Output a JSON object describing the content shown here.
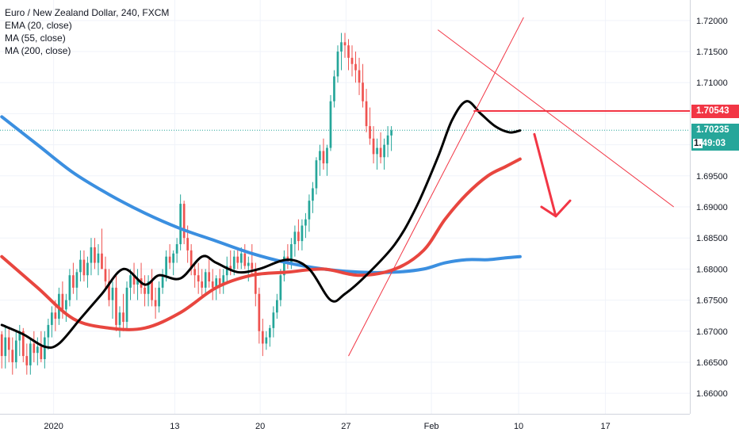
{
  "legend": {
    "title": "Euro / New Zealand Dollar, 240, FXCM",
    "ema": "EMA (20, close)",
    "ma55": "MA (55, close)",
    "ma200": "MA (200, close)"
  },
  "price_tags": {
    "resistance": "1.70543",
    "current": "1.70235",
    "countdown": "49:03",
    "countdown_prefix": "1."
  },
  "colors": {
    "up": "#26a69a",
    "down": "#ef5350",
    "ema20": "#000000",
    "ma55": "#e8463f",
    "ma200": "#3b8fe0",
    "drawing": "#f23645",
    "grid": "#f0f3fa",
    "current_tag": "#26a69a",
    "resistance_tag": "#f23645"
  },
  "chart_data": {
    "type": "candlestick",
    "title": "Euro / New Zealand Dollar, 240, FXCM",
    "ylim": [
      1.6567,
      1.7233
    ],
    "y_ticks": [
      "1.72000",
      "1.71500",
      "1.71000",
      "1.70500",
      "1.70000",
      "1.69500",
      "1.69000",
      "1.68500",
      "1.68000",
      "1.67500",
      "1.67000",
      "1.66500",
      "1.66000"
    ],
    "x_ticks": [
      "2020",
      "13",
      "20",
      "27",
      "Feb",
      "10",
      "17"
    ],
    "x_tick_bars": [
      14.5,
      48.4,
      72.3,
      96.3,
      120.2,
      144.6,
      168.9
    ],
    "bars_visible": 193,
    "resistance_level": 1.70543,
    "current_price": 1.70235,
    "ohlc": [
      [
        1.6695,
        1.67,
        1.664,
        1.666
      ],
      [
        1.666,
        1.671,
        1.664,
        1.669
      ],
      [
        1.669,
        1.6705,
        1.665,
        1.667
      ],
      [
        1.667,
        1.669,
        1.663,
        1.665
      ],
      [
        1.665,
        1.67,
        1.664,
        1.6685
      ],
      [
        1.6685,
        1.671,
        1.666,
        1.67
      ],
      [
        1.67,
        1.6705,
        1.665,
        1.666
      ],
      [
        1.666,
        1.668,
        1.663,
        1.6645
      ],
      [
        1.6645,
        1.669,
        1.663,
        1.668
      ],
      [
        1.668,
        1.67,
        1.665,
        1.6665
      ],
      [
        1.6665,
        1.669,
        1.6645,
        1.6675
      ],
      [
        1.6675,
        1.67,
        1.665,
        1.6655
      ],
      [
        1.6655,
        1.67,
        1.664,
        1.669
      ],
      [
        1.669,
        1.672,
        1.667,
        1.671
      ],
      [
        1.671,
        1.674,
        1.669,
        1.673
      ],
      [
        1.673,
        1.675,
        1.67,
        1.672
      ],
      [
        1.672,
        1.677,
        1.671,
        1.676
      ],
      [
        1.676,
        1.678,
        1.672,
        1.6735
      ],
      [
        1.6735,
        1.676,
        1.6715,
        1.675
      ],
      [
        1.675,
        1.68,
        1.674,
        1.679
      ],
      [
        1.679,
        1.681,
        1.676,
        1.677
      ],
      [
        1.677,
        1.68,
        1.675,
        1.6795
      ],
      [
        1.6795,
        1.683,
        1.678,
        1.6815
      ],
      [
        1.6815,
        1.683,
        1.678,
        1.679
      ],
      [
        1.679,
        1.682,
        1.677,
        1.681
      ],
      [
        1.681,
        1.685,
        1.679,
        1.6835
      ],
      [
        1.6835,
        1.685,
        1.68,
        1.681
      ],
      [
        1.681,
        1.684,
        1.679,
        1.6825
      ],
      [
        1.6825,
        1.6865,
        1.68,
        1.68
      ],
      [
        1.68,
        1.682,
        1.677,
        1.678
      ],
      [
        1.678,
        1.68,
        1.674,
        1.675
      ],
      [
        1.675,
        1.678,
        1.672,
        1.677
      ],
      [
        1.677,
        1.679,
        1.67,
        1.671
      ],
      [
        1.671,
        1.674,
        1.669,
        1.673
      ],
      [
        1.673,
        1.676,
        1.67,
        1.6715
      ],
      [
        1.6715,
        1.678,
        1.67,
        1.677
      ],
      [
        1.677,
        1.68,
        1.675,
        1.679
      ],
      [
        1.679,
        1.681,
        1.676,
        1.6775
      ],
      [
        1.6775,
        1.68,
        1.675,
        1.6785
      ],
      [
        1.6785,
        1.681,
        1.676,
        1.677
      ],
      [
        1.677,
        1.679,
        1.674,
        1.676
      ],
      [
        1.676,
        1.679,
        1.674,
        1.678
      ],
      [
        1.678,
        1.68,
        1.674,
        1.675
      ],
      [
        1.675,
        1.677,
        1.672,
        1.674
      ],
      [
        1.674,
        1.678,
        1.673,
        1.677
      ],
      [
        1.677,
        1.68,
        1.676,
        1.679
      ],
      [
        1.679,
        1.683,
        1.678,
        1.682
      ],
      [
        1.682,
        1.684,
        1.68,
        1.681
      ],
      [
        1.681,
        1.683,
        1.679,
        1.6825
      ],
      [
        1.6825,
        1.685,
        1.681,
        1.684
      ],
      [
        1.684,
        1.692,
        1.683,
        1.6905
      ],
      [
        1.6905,
        1.691,
        1.684,
        1.685
      ],
      [
        1.685,
        1.687,
        1.681,
        1.683
      ],
      [
        1.683,
        1.684,
        1.679,
        1.68
      ],
      [
        1.68,
        1.681,
        1.677,
        1.679
      ],
      [
        1.679,
        1.681,
        1.676,
        1.678
      ],
      [
        1.678,
        1.68,
        1.6755,
        1.677
      ],
      [
        1.677,
        1.68,
        1.676,
        1.6795
      ],
      [
        1.6795,
        1.682,
        1.677,
        1.678
      ],
      [
        1.678,
        1.68,
        1.675,
        1.677
      ],
      [
        1.677,
        1.679,
        1.675,
        1.6785
      ],
      [
        1.6785,
        1.68,
        1.676,
        1.6775
      ],
      [
        1.6775,
        1.68,
        1.676,
        1.679
      ],
      [
        1.679,
        1.682,
        1.678,
        1.6805
      ],
      [
        1.6805,
        1.683,
        1.679,
        1.68
      ],
      [
        1.68,
        1.683,
        1.679,
        1.682
      ],
      [
        1.682,
        1.6835,
        1.68,
        1.681
      ],
      [
        1.681,
        1.6835,
        1.68,
        1.6825
      ],
      [
        1.6825,
        1.684,
        1.68,
        1.6805
      ],
      [
        1.6805,
        1.682,
        1.678,
        1.681
      ],
      [
        1.681,
        1.684,
        1.679,
        1.68
      ],
      [
        1.68,
        1.681,
        1.674,
        1.676
      ],
      [
        1.676,
        1.677,
        1.668,
        1.67
      ],
      [
        1.67,
        1.672,
        1.666,
        1.668
      ],
      [
        1.668,
        1.67,
        1.667,
        1.669
      ],
      [
        1.669,
        1.671,
        1.6675,
        1.6705
      ],
      [
        1.6705,
        1.674,
        1.669,
        1.673
      ],
      [
        1.673,
        1.676,
        1.672,
        1.675
      ],
      [
        1.675,
        1.68,
        1.674,
        1.679
      ],
      [
        1.679,
        1.683,
        1.678,
        1.682
      ],
      [
        1.682,
        1.684,
        1.68,
        1.681
      ],
      [
        1.681,
        1.685,
        1.68,
        1.684
      ],
      [
        1.684,
        1.687,
        1.682,
        1.686
      ],
      [
        1.686,
        1.688,
        1.683,
        1.6845
      ],
      [
        1.6845,
        1.688,
        1.683,
        1.687
      ],
      [
        1.687,
        1.689,
        1.685,
        1.688
      ],
      [
        1.688,
        1.692,
        1.686,
        1.691
      ],
      [
        1.691,
        1.694,
        1.689,
        1.693
      ],
      [
        1.693,
        1.698,
        1.692,
        1.6975
      ],
      [
        1.6975,
        1.7,
        1.695,
        1.699
      ],
      [
        1.699,
        1.701,
        1.696,
        1.697
      ],
      [
        1.697,
        1.7,
        1.695,
        1.6995
      ],
      [
        1.6995,
        1.708,
        1.699,
        1.707
      ],
      [
        1.707,
        1.712,
        1.706,
        1.711
      ],
      [
        1.711,
        1.716,
        1.71,
        1.715
      ],
      [
        1.715,
        1.718,
        1.712,
        1.7165
      ],
      [
        1.7165,
        1.718,
        1.714,
        1.716
      ],
      [
        1.716,
        1.717,
        1.712,
        1.714
      ],
      [
        1.714,
        1.716,
        1.711,
        1.713
      ],
      [
        1.713,
        1.715,
        1.71,
        1.712
      ],
      [
        1.712,
        1.714,
        1.708,
        1.71
      ],
      [
        1.71,
        1.713,
        1.706,
        1.707
      ],
      [
        1.707,
        1.709,
        1.702,
        1.703
      ],
      [
        1.703,
        1.706,
        1.7,
        1.701
      ],
      [
        1.701,
        1.703,
        1.697,
        1.6985
      ],
      [
        1.6985,
        1.701,
        1.696,
        1.6995
      ],
      [
        1.6995,
        1.702,
        1.697,
        1.698
      ],
      [
        1.698,
        1.701,
        1.696,
        1.7
      ],
      [
        1.7,
        1.703,
        1.698,
        1.7015
      ],
      [
        1.7015,
        1.703,
        1.699,
        1.7023
      ]
    ],
    "ema20_points": [
      [
        0,
        1.671
      ],
      [
        6,
        1.6695
      ],
      [
        12,
        1.6675
      ],
      [
        16,
        1.668
      ],
      [
        22,
        1.672
      ],
      [
        28,
        1.676
      ],
      [
        34,
        1.68
      ],
      [
        40,
        1.6775
      ],
      [
        44,
        1.679
      ],
      [
        50,
        1.6785
      ],
      [
        56,
        1.682
      ],
      [
        60,
        1.681
      ],
      [
        66,
        1.6795
      ],
      [
        72,
        1.68
      ],
      [
        80,
        1.6815
      ],
      [
        86,
        1.68
      ],
      [
        92,
        1.675
      ],
      [
        96,
        1.676
      ],
      [
        102,
        1.679
      ],
      [
        110,
        1.684
      ],
      [
        116,
        1.69
      ],
      [
        122,
        1.698
      ],
      [
        126,
        1.704
      ],
      [
        130,
        1.707
      ],
      [
        134,
        1.705
      ],
      [
        138,
        1.703
      ],
      [
        142,
        1.702
      ],
      [
        145,
        1.7023
      ]
    ],
    "ma55_points": [
      [
        0,
        1.682
      ],
      [
        10,
        1.677
      ],
      [
        20,
        1.672
      ],
      [
        30,
        1.6705
      ],
      [
        40,
        1.6705
      ],
      [
        50,
        1.673
      ],
      [
        60,
        1.677
      ],
      [
        70,
        1.679
      ],
      [
        80,
        1.6795
      ],
      [
        90,
        1.68
      ],
      [
        100,
        1.679
      ],
      [
        110,
        1.68
      ],
      [
        118,
        1.683
      ],
      [
        124,
        1.688
      ],
      [
        130,
        1.692
      ],
      [
        136,
        1.695
      ],
      [
        141,
        1.6965
      ],
      [
        145,
        1.6977
      ]
    ],
    "ma200_points": [
      [
        0,
        1.7045
      ],
      [
        10,
        1.7
      ],
      [
        20,
        1.6955
      ],
      [
        30,
        1.692
      ],
      [
        40,
        1.689
      ],
      [
        50,
        1.6865
      ],
      [
        60,
        1.6845
      ],
      [
        70,
        1.6825
      ],
      [
        80,
        1.681
      ],
      [
        90,
        1.68
      ],
      [
        100,
        1.6795
      ],
      [
        110,
        1.6795
      ],
      [
        118,
        1.68
      ],
      [
        124,
        1.681
      ],
      [
        130,
        1.6815
      ],
      [
        136,
        1.6815
      ],
      [
        141,
        1.6818
      ],
      [
        145,
        1.682
      ]
    ]
  }
}
